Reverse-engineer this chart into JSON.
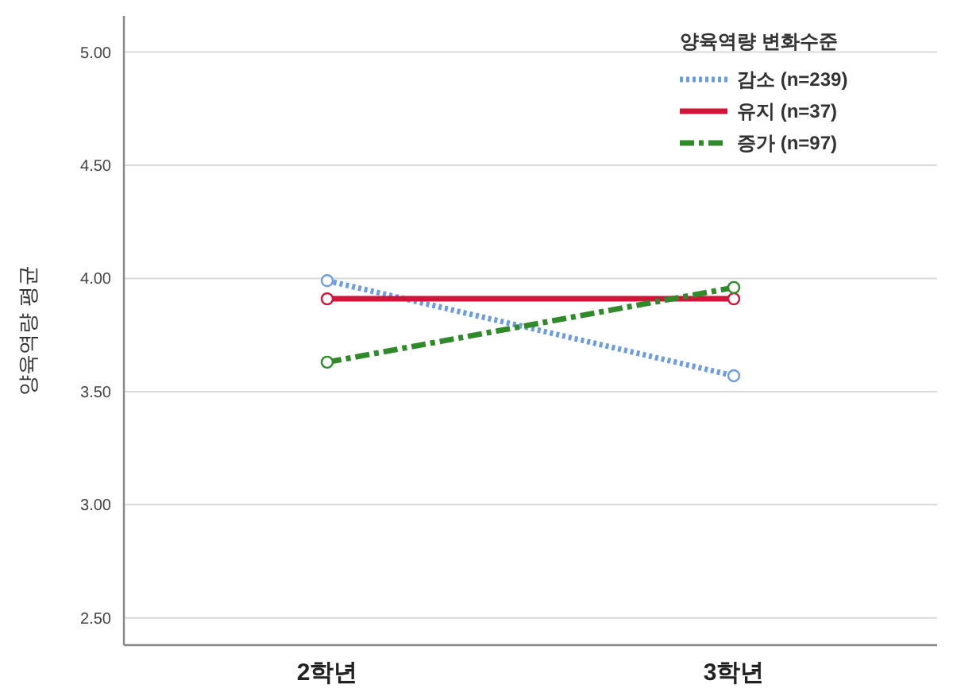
{
  "chart_data": {
    "type": "line",
    "ylabel": "양육역량 평균",
    "legend_title": "양육역량 변화수준",
    "categories": [
      "2학년",
      "3학년"
    ],
    "series": [
      {
        "name": "감소 (n=239)",
        "color": "#6b9de0",
        "values": [
          3.99,
          3.57
        ],
        "line_style": "dotted"
      },
      {
        "name": "유지 (n=37)",
        "color": "#d2143a",
        "values": [
          3.91,
          3.91
        ],
        "line_style": "solid"
      },
      {
        "name": "증가 (n=97)",
        "color": "#2f8a2a",
        "values": [
          3.63,
          3.96
        ],
        "line_style": "dashdot"
      }
    ],
    "ylim": [
      2.38,
      5.16
    ],
    "yticks": [
      {
        "value": 2.5,
        "label": "2.50"
      },
      {
        "value": 3,
        "label": "3.00"
      },
      {
        "value": 3.5,
        "label": "3.50"
      },
      {
        "value": 4,
        "label": "4.00"
      },
      {
        "value": 4.5,
        "label": "4.50"
      },
      {
        "value": 5,
        "label": "5.00"
      }
    ],
    "grid": "y",
    "legend": "top right",
    "marker": "circle"
  }
}
